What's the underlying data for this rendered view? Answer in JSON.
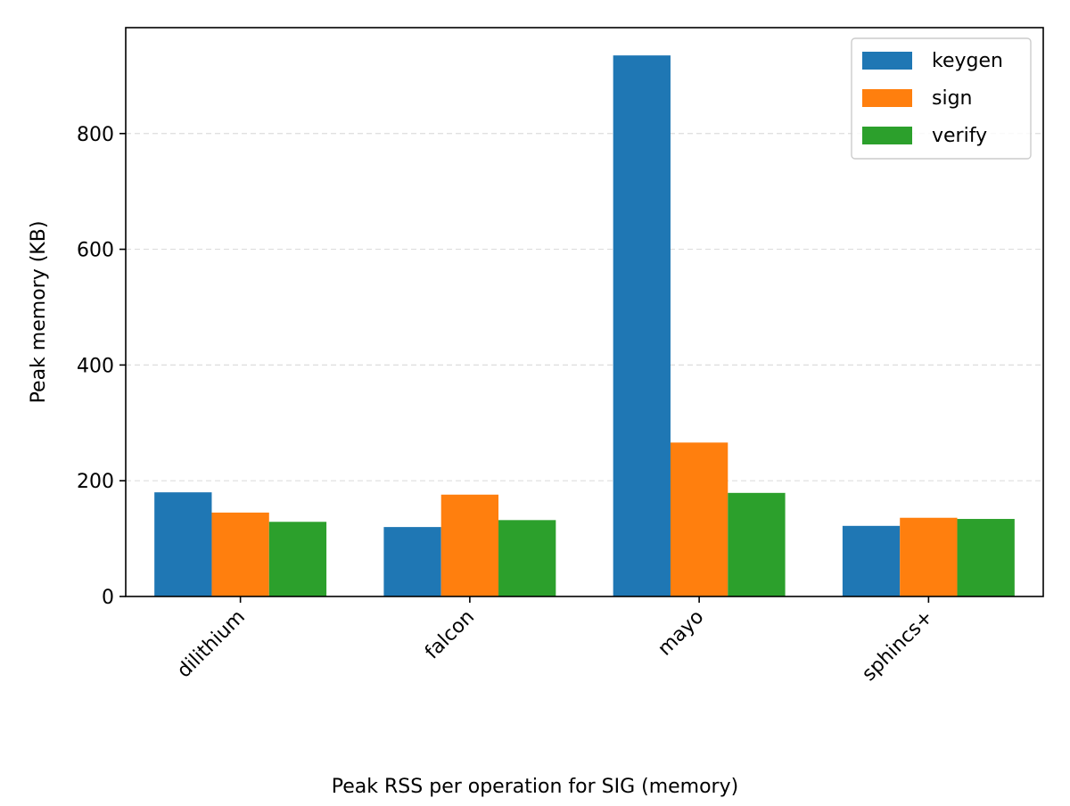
{
  "chart_data": {
    "type": "bar",
    "categories": [
      "dilithium",
      "falcon",
      "mayo",
      "sphincs+"
    ],
    "series": [
      {
        "name": "keygen",
        "color": "#1f77b4",
        "values": [
          180,
          120,
          935,
          122
        ]
      },
      {
        "name": "sign",
        "color": "#ff7f0e",
        "values": [
          145,
          176,
          266,
          136
        ]
      },
      {
        "name": "verify",
        "color": "#2ca02c",
        "values": [
          129,
          132,
          179,
          134
        ]
      }
    ],
    "title": "",
    "caption": "Peak RSS per operation for SIG (memory)",
    "xlabel": "",
    "ylabel": "Peak memory (KB)",
    "ylim": [
      0,
      983
    ],
    "yticks": [
      0,
      200,
      400,
      600,
      800
    ],
    "grid": "y-dashed",
    "legend": "top-right"
  }
}
